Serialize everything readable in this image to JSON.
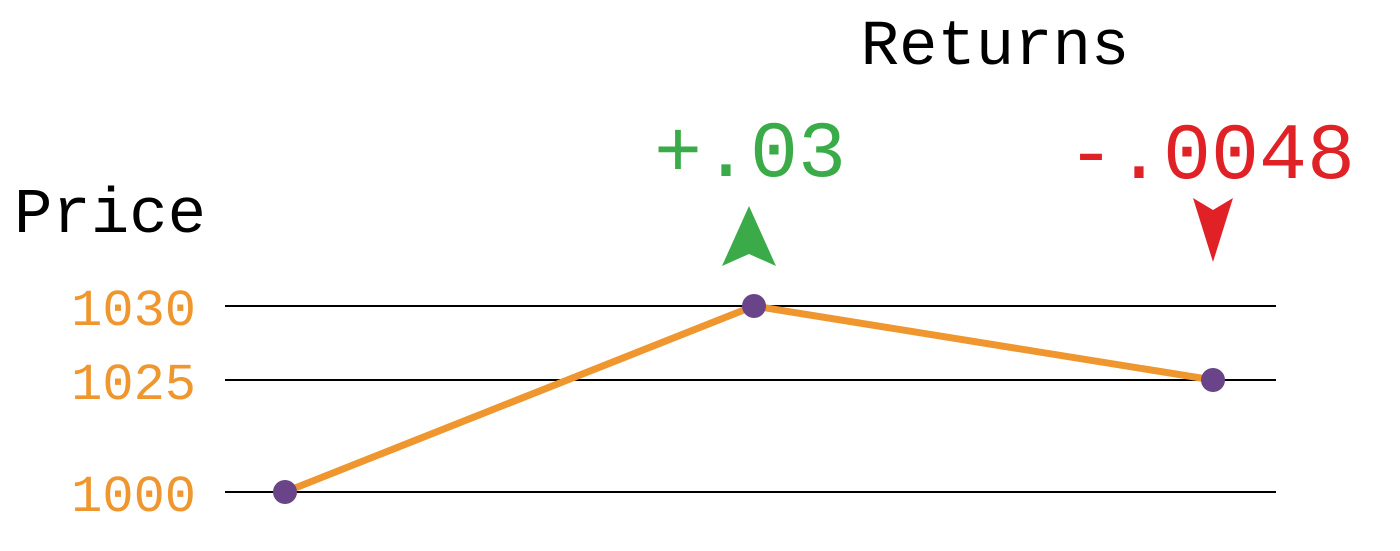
{
  "chart_data": {
    "type": "line",
    "title": "Returns",
    "ylabel": "Price",
    "xlabel": "",
    "x": [
      0,
      1,
      2
    ],
    "y_ticks": [
      1000,
      1025,
      1030
    ],
    "series": [
      {
        "values": [
          1000,
          1030,
          1025
        ]
      }
    ],
    "annotations": [
      {
        "point_index": 1,
        "text": "+.03",
        "direction": "up"
      },
      {
        "point_index": 2,
        "text": "-.0048",
        "direction": "down"
      }
    ],
    "grid": true,
    "colors": {
      "line": "#f0962e",
      "marker": "#6a4488",
      "tick_label": "#f0962e",
      "gridline": "#000000",
      "up": "#3aab48",
      "down": "#e02227",
      "text": "#000000"
    }
  }
}
